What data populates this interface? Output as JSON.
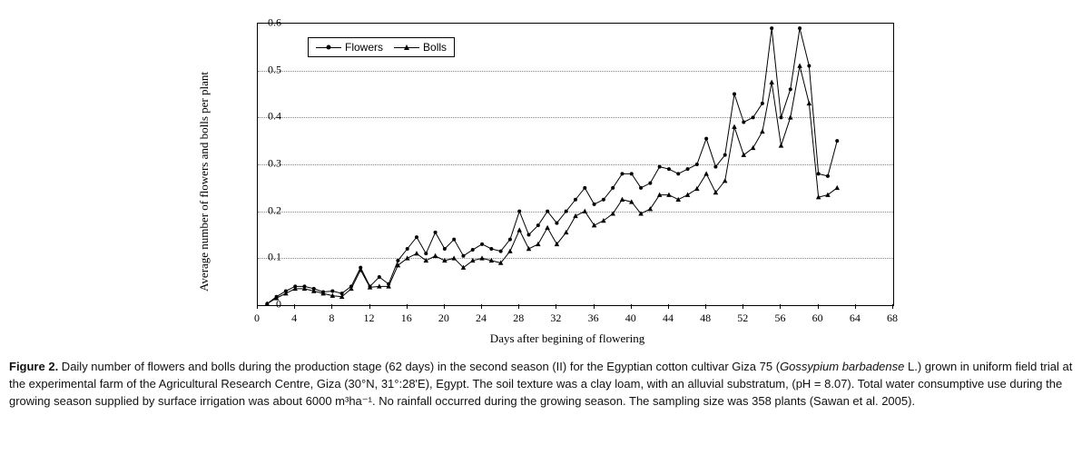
{
  "chart": {
    "type": "line",
    "background_color": "#ffffff",
    "grid_color": "#888888",
    "axis_color": "#000000",
    "series_color": "#000000",
    "ylabel": "Average number of flowers and bolls per plant",
    "xlabel": "Days after begining of flowering",
    "label_fontsize": 13,
    "tick_fontsize": 12,
    "ylim": [
      0,
      0.6
    ],
    "ytick_step": 0.1,
    "xlim": [
      0,
      68
    ],
    "xtick_step": 4,
    "xticks": [
      0,
      4,
      8,
      12,
      16,
      20,
      24,
      28,
      32,
      36,
      40,
      44,
      48,
      52,
      56,
      60,
      64,
      68
    ],
    "legend": {
      "position": "top-left",
      "border_color": "#000000",
      "items": [
        {
          "label": "Flowers",
          "marker": "circle"
        },
        {
          "label": "Bolls",
          "marker": "triangle"
        }
      ]
    },
    "series": [
      {
        "name": "Flowers",
        "marker": "circle",
        "marker_size": 4,
        "line_width": 1,
        "x": [
          1,
          2,
          3,
          4,
          5,
          6,
          7,
          8,
          9,
          10,
          11,
          12,
          13,
          14,
          15,
          16,
          17,
          18,
          19,
          20,
          21,
          22,
          23,
          24,
          25,
          26,
          27,
          28,
          29,
          30,
          31,
          32,
          33,
          34,
          35,
          36,
          37,
          38,
          39,
          40,
          41,
          42,
          43,
          44,
          45,
          46,
          47,
          48,
          49,
          50,
          51,
          52,
          53,
          54,
          55,
          56,
          57,
          58,
          59,
          60,
          61,
          62
        ],
        "y": [
          0.003,
          0.018,
          0.03,
          0.04,
          0.04,
          0.035,
          0.028,
          0.03,
          0.025,
          0.04,
          0.08,
          0.04,
          0.06,
          0.045,
          0.095,
          0.12,
          0.145,
          0.11,
          0.155,
          0.12,
          0.14,
          0.105,
          0.118,
          0.13,
          0.12,
          0.115,
          0.14,
          0.2,
          0.15,
          0.17,
          0.2,
          0.175,
          0.2,
          0.225,
          0.25,
          0.215,
          0.225,
          0.25,
          0.28,
          0.28,
          0.25,
          0.26,
          0.295,
          0.29,
          0.28,
          0.29,
          0.3,
          0.355,
          0.295,
          0.32,
          0.45,
          0.39,
          0.4,
          0.43,
          0.59,
          0.4,
          0.46,
          0.59,
          0.51,
          0.28,
          0.275,
          0.35
        ]
      },
      {
        "name": "Bolls",
        "marker": "triangle",
        "marker_size": 5,
        "line_width": 1,
        "x": [
          1,
          2,
          3,
          4,
          5,
          6,
          7,
          8,
          9,
          10,
          11,
          12,
          13,
          14,
          15,
          16,
          17,
          18,
          19,
          20,
          21,
          22,
          23,
          24,
          25,
          26,
          27,
          28,
          29,
          30,
          31,
          32,
          33,
          34,
          35,
          36,
          37,
          38,
          39,
          40,
          41,
          42,
          43,
          44,
          45,
          46,
          47,
          48,
          49,
          50,
          51,
          52,
          53,
          54,
          55,
          56,
          57,
          58,
          59,
          60,
          61,
          62
        ],
        "y": [
          0.003,
          0.015,
          0.025,
          0.035,
          0.035,
          0.03,
          0.025,
          0.02,
          0.018,
          0.035,
          0.075,
          0.038,
          0.04,
          0.04,
          0.085,
          0.1,
          0.11,
          0.095,
          0.105,
          0.095,
          0.1,
          0.08,
          0.095,
          0.1,
          0.095,
          0.09,
          0.115,
          0.16,
          0.12,
          0.13,
          0.165,
          0.13,
          0.155,
          0.19,
          0.2,
          0.17,
          0.18,
          0.195,
          0.225,
          0.22,
          0.195,
          0.205,
          0.235,
          0.235,
          0.225,
          0.235,
          0.248,
          0.28,
          0.24,
          0.265,
          0.38,
          0.32,
          0.335,
          0.37,
          0.475,
          0.34,
          0.4,
          0.51,
          0.43,
          0.23,
          0.235,
          0.25
        ]
      }
    ]
  },
  "caption": {
    "figure_label": "Figure 2.",
    "text_before_species": " Daily number of flowers and bolls during the production stage (62 days) in the second season (II) for the Egyptian cotton cultivar Giza 75 (",
    "species": "Gossypium barbadense",
    "text_after_species": " L.) grown in uniform field trial at the experimental farm of the Agricultural Research Centre, Giza (30°N, 31°:28'E), Egypt. The soil texture was a clay loam, with an alluvial substratum, (pH = 8.07). Total water consumptive use during the growing season supplied by surface irrigation was about 6000 m³ha⁻¹. No rainfall occurred during the growing season. The sampling size was 358 plants (Sawan et al. 2005)."
  }
}
